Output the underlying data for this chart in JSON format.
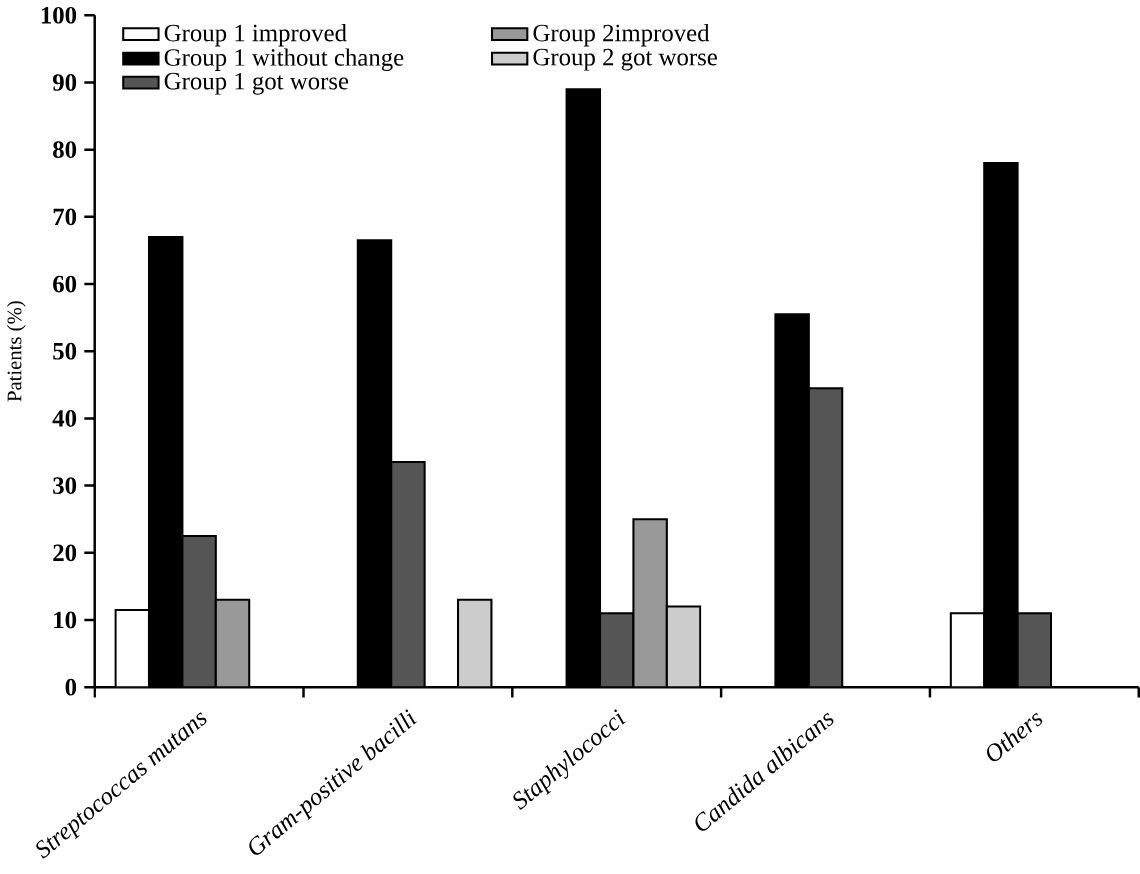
{
  "chart_data": {
    "type": "bar",
    "ylabel": "Patients (%)",
    "categories": [
      "Streptococcas mutans",
      "Gram-positive bacilli",
      "Staphylococci",
      "Candida albicans",
      "Others"
    ],
    "series": [
      {
        "name": "Group 1 improved",
        "color": "#ffffff",
        "values": [
          11.5,
          null,
          null,
          null,
          11
        ]
      },
      {
        "name": "Group 1 without change",
        "color": "#000000",
        "values": [
          67,
          66.5,
          89,
          55.5,
          78
        ]
      },
      {
        "name": "Group 1 got worse",
        "color": "#555555",
        "values": [
          22.5,
          33.5,
          11,
          44.5,
          11
        ]
      },
      {
        "name": "Group 2improved",
        "color": "#999999",
        "values": [
          13,
          null,
          25,
          null,
          null
        ]
      },
      {
        "name": "Group 2 got worse",
        "color": "#cccccc",
        "values": [
          null,
          13,
          12,
          null,
          null
        ]
      }
    ],
    "ylim": [
      0,
      100
    ],
    "yticks": [
      0,
      10,
      20,
      30,
      40,
      50,
      60,
      70,
      80,
      90,
      100
    ],
    "grid": false,
    "legend": "top"
  }
}
